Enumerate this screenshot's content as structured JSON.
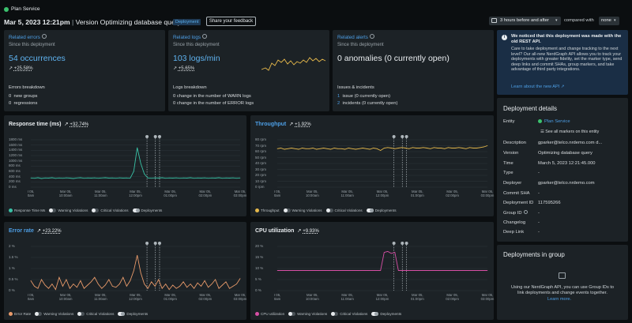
{
  "app": {
    "entity_name": "Plan Service"
  },
  "header": {
    "date": "Mar 5, 2023 12:21pm",
    "separator": "|",
    "version_title": "Version Optimizing database query",
    "badge": "Deployment",
    "feedback_button": "Share your feedback",
    "time_range": "3 hours before and after",
    "compared_with_label": "compared with",
    "compare_value": "none"
  },
  "summary": {
    "errors": {
      "title": "Related errors",
      "since": "Since this deployment",
      "value": "54 occurrences",
      "change": "+25.58%",
      "breakdown_title": "Errors breakdown",
      "lines": [
        {
          "n": "0",
          "text": "new groups"
        },
        {
          "n": "0",
          "text": "regressions"
        }
      ]
    },
    "logs": {
      "title": "Related logs",
      "since": "Since this deployment",
      "value": "103 logs/min",
      "change": "+5.65%",
      "breakdown_title": "Logs breakdown",
      "lines": [
        {
          "n": "0",
          "text": "change in the number of WARN logs"
        },
        {
          "n": "0",
          "text": "change in the number of ERROR logs"
        }
      ]
    },
    "alerts": {
      "title": "Related alerts",
      "since": "Since this deployment",
      "value": "0 anomalies (0 currently open)",
      "breakdown_title": "Issues & incidents",
      "lines": [
        {
          "n": "1",
          "text": "issue (0 currently open)"
        },
        {
          "n": "2",
          "text": "incidents (0 currently open)"
        }
      ]
    }
  },
  "notice": {
    "title": "We noticed that this deployment was made with the old REST API.",
    "body": "Care to take deployment and change tracking to the next level? Our all-new NerdGraph API allows you to track your deployments with greater fidelity, set the marker type, send deep links and commit SHAs, group markers, and take advantage of third party integrations.",
    "link": "Learn about the new API"
  },
  "details": {
    "title": "Deployment details",
    "entity_label": "Entity",
    "entity_value": "Plan Service",
    "see_all": "See all markers on this entity",
    "rows": [
      {
        "k": "Description",
        "v": "gparker@telco.nrdemo.com d..."
      },
      {
        "k": "Version",
        "v": "Optimizing database query"
      },
      {
        "k": "Time",
        "v": "March 5, 2023 12:21:45.000"
      },
      {
        "k": "Type",
        "v": "-"
      },
      {
        "k": "Deployer",
        "v": "gparker@telco.nrdemo.com"
      },
      {
        "k": "Commit SHA",
        "v": "-"
      },
      {
        "k": "Deployment ID",
        "v": "117595266"
      },
      {
        "k": "Group ID",
        "v": "-"
      },
      {
        "k": "Changelog",
        "v": "-"
      },
      {
        "k": "Deep Link",
        "v": "-"
      }
    ]
  },
  "group": {
    "title": "Deployments in group",
    "text": "Using our NerdGraph API, you can use Group IDs to link deployments and change events together.",
    "link": "Learn more."
  },
  "legend": {
    "warning": "Warning Violations",
    "critical": "Critical Violations",
    "deployments": "Deployments"
  },
  "x_ticks": [
    [
      "r 05,",
      "0am"
    ],
    [
      "Mar 05,",
      "10:00am"
    ],
    [
      "Mar 05,",
      "11:00am"
    ],
    [
      "Mar 05,",
      "12:00pm"
    ],
    [
      "Mar 05,",
      "01:00pm"
    ],
    [
      "Mar 05,",
      "02:00pm"
    ],
    [
      "Mar 05,",
      "03:00pm"
    ]
  ],
  "chart_data": [
    {
      "type": "line",
      "title": "Response time (ms)",
      "change": "+32.74%",
      "series_label": "Response Time Ms",
      "color": "#39c2a6",
      "y_ticks": [
        "1800 ms",
        "1600 ms",
        "1400 ms",
        "1200 ms",
        "1000 ms",
        "800 ms",
        "600 ms",
        "400 ms",
        "200 ms",
        "0 ms"
      ],
      "ylim": [
        0,
        1800
      ],
      "values": [
        350,
        340,
        360,
        330,
        350,
        345,
        360,
        335,
        350,
        340,
        355,
        345,
        330,
        350,
        360,
        340,
        350,
        345,
        355,
        340,
        350,
        360,
        345,
        350,
        340,
        355,
        345,
        350,
        340,
        600,
        1500,
        900,
        500,
        350,
        340,
        355,
        345,
        360,
        340,
        350,
        345,
        355,
        340,
        350,
        345,
        360,
        340,
        350,
        345,
        355,
        340,
        350,
        345,
        360,
        340,
        350,
        345,
        355,
        340,
        350
      ]
    },
    {
      "type": "line",
      "title": "Throughput",
      "change": "+1.92%",
      "series_label": "Throughput",
      "color": "#e5b84b",
      "y_ticks": [
        "80 rpm",
        "70 rpm",
        "60 rpm",
        "50 rpm",
        "40 rpm",
        "30 rpm",
        "20 rpm",
        "10 rpm",
        "0 rpm"
      ],
      "ylim": [
        0,
        80
      ],
      "values": [
        65,
        66,
        64,
        65,
        66,
        65,
        64,
        66,
        65,
        65,
        66,
        64,
        65,
        66,
        65,
        64,
        66,
        65,
        65,
        64,
        66,
        65,
        64,
        65,
        66,
        65,
        64,
        66,
        65,
        62,
        66,
        67,
        66,
        65,
        66,
        67,
        66,
        65,
        67,
        66,
        66,
        67,
        66,
        65,
        67,
        66,
        66,
        65,
        67,
        66,
        66,
        67,
        66,
        65,
        67,
        66,
        66,
        67,
        68,
        70
      ]
    },
    {
      "type": "line",
      "title": "Error rate",
      "change": "+23.22%",
      "series_label": "Error Rate",
      "color": "#e89a6a",
      "y_ticks": [
        "2 %",
        "1.5 %",
        "1 %",
        "0.5 %",
        "0 %"
      ],
      "ylim": [
        0,
        2
      ],
      "values": [
        0.45,
        0.2,
        0.1,
        0.5,
        0.25,
        0.1,
        0.3,
        0.05,
        0.6,
        0.2,
        0.5,
        0.1,
        0.3,
        0.15,
        0.45,
        0.1,
        0.25,
        0.4,
        0.6,
        0.3,
        0.1,
        0.25,
        0.5,
        0.2,
        0.15,
        0.3,
        0.6,
        0.2,
        0.45,
        0.9,
        1.6,
        0.8,
        0.3,
        0.1,
        0.4,
        0.2,
        0.5,
        0.1,
        0.3,
        0.05,
        0.25,
        0.1,
        0.2,
        0.4,
        0.15,
        0.3,
        0.1,
        0.35,
        0.2,
        0.45,
        0.15,
        0.3,
        0.5,
        0.1,
        0.25,
        0.4,
        0.1,
        0.2,
        0.3,
        0.55
      ]
    },
    {
      "type": "line",
      "title": "CPU utilization",
      "change": "+9.93%",
      "series_label": "CPU utilization",
      "color": "#d64fa5",
      "y_ticks": [
        "20 %",
        "15 %",
        "10 %",
        "5 %",
        "0 %"
      ],
      "ylim": [
        0,
        22
      ],
      "values": [
        10,
        10,
        10,
        10,
        10,
        10,
        10,
        10,
        10,
        10,
        10,
        10,
        10,
        10,
        10,
        10,
        10,
        10,
        10,
        10,
        10,
        10,
        10,
        10,
        10,
        10,
        10,
        10,
        10,
        10,
        19,
        19.5,
        18.5,
        19,
        10,
        10,
        10,
        10,
        10,
        10,
        10,
        10,
        10,
        10,
        10,
        10,
        10,
        10,
        10,
        10,
        10,
        10,
        10,
        10,
        10,
        10,
        10,
        10,
        10,
        10
      ]
    }
  ]
}
